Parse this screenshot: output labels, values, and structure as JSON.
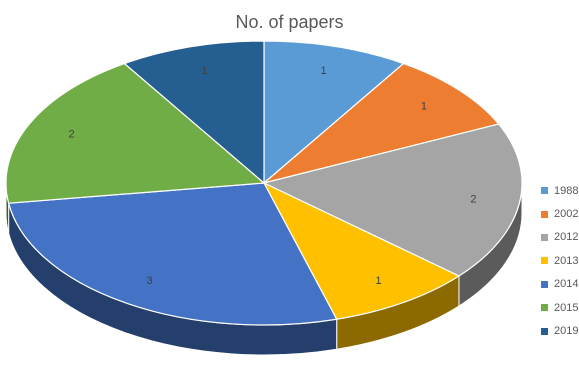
{
  "chart_data": {
    "type": "pie",
    "style": "3d",
    "title": "No. of papers",
    "categories": [
      "1988",
      "2002",
      "2012",
      "2013",
      "2014",
      "2015",
      "2019"
    ],
    "values": [
      1,
      1,
      2,
      1,
      3,
      2,
      1
    ],
    "colors": [
      "#5B9BD5",
      "#ED7D31",
      "#A5A5A5",
      "#FFC000",
      "#4472C4",
      "#70AD47",
      "#255E91"
    ],
    "legend_position": "right",
    "data_labels": true
  }
}
